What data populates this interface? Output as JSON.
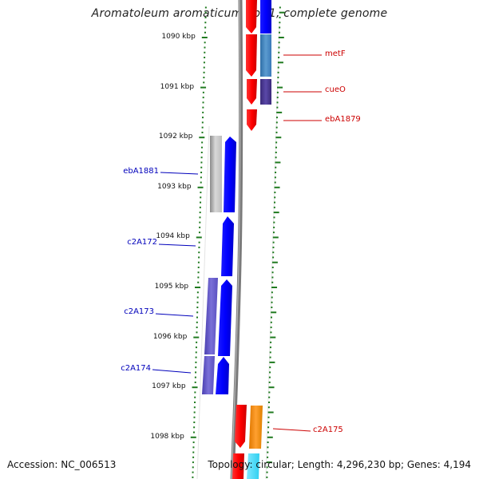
{
  "title": "Aromatoleum aromaticum EbN1, complete genome",
  "footer": {
    "accession": "Accession: NC_006513",
    "topology": "Topology: circular; Length: 4,296,230 bp; Genes: 4,194"
  },
  "ruler": {
    "unit": "kbp",
    "ticks": [
      "1090 kbp",
      "1091 kbp",
      "1092 kbp",
      "1093 kbp",
      "1094 kbp",
      "1095 kbp",
      "1096 kbp",
      "1097 kbp",
      "1098 kbp"
    ]
  },
  "gene_labels": [
    {
      "name": "metF",
      "color": "#cc0000"
    },
    {
      "name": "cueO",
      "color": "#cc0000"
    },
    {
      "name": "ebA1879",
      "color": "#cc0000"
    },
    {
      "name": "ebA1881",
      "color": "#0000bb"
    },
    {
      "name": "c2A172",
      "color": "#0000bb"
    },
    {
      "name": "c2A173",
      "color": "#0000bb"
    },
    {
      "name": "c2A174",
      "color": "#0000bb"
    },
    {
      "name": "c2A175",
      "color": "#cc0000"
    }
  ],
  "colors": {
    "tick": "#1f7a1f",
    "backbone": "#7a7a7a",
    "forward_strand": "#ff0000",
    "reverse_strand": "#0000ff"
  }
}
